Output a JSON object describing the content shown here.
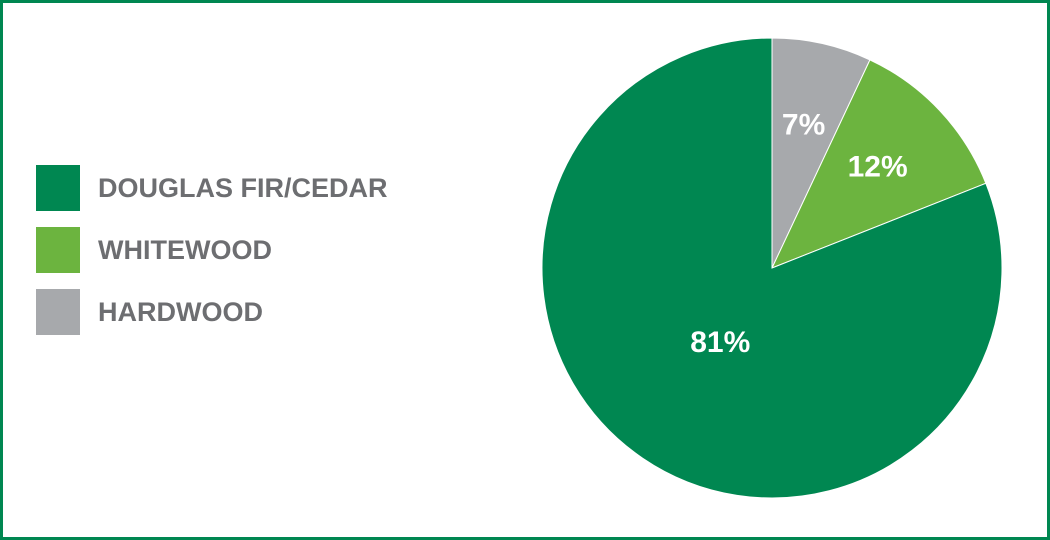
{
  "chart_data": {
    "type": "pie",
    "categories": [
      "DOUGLAS FIR/CEDAR",
      "WHITEWOOD",
      "HARDWOOD"
    ],
    "values": [
      81,
      12,
      7
    ],
    "value_labels": [
      "81%",
      "12%",
      "7%"
    ],
    "colors": [
      "#008751",
      "#6cb43f",
      "#a7a9ac"
    ],
    "legend": "left"
  }
}
